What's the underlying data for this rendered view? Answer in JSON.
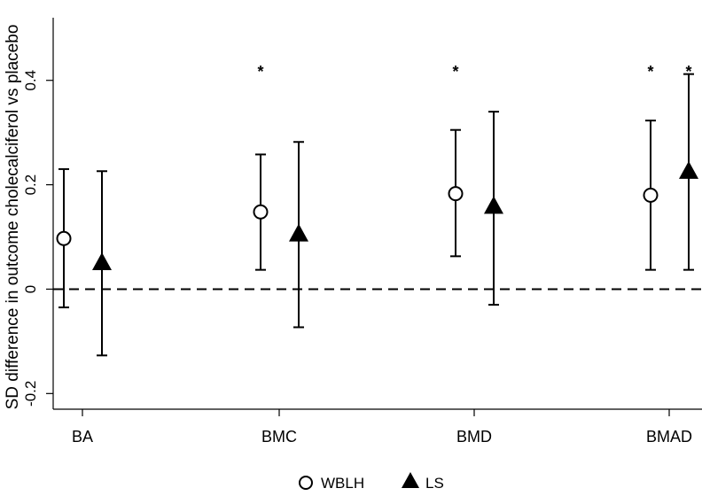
{
  "chart_data": {
    "type": "scatter",
    "title": "",
    "ylabel": "SD difference in outcome cholecalciferol vs placebo",
    "xlabel": "",
    "categories": [
      "BA",
      "BMC",
      "BMD",
      "BMAD"
    ],
    "ylim": [
      -0.23,
      0.52
    ],
    "yticks": [
      -0.2,
      0,
      0.2,
      0.4
    ],
    "ytick_labels": [
      "-0.2",
      "0",
      "0.2",
      "0.4"
    ],
    "reference_line": {
      "y": 0,
      "style": "dashed"
    },
    "significance_marker": "*",
    "series": [
      {
        "name": "WBLH",
        "marker": "open-circle",
        "values": [
          0.097,
          0.148,
          0.183,
          0.18
        ],
        "ci_low": [
          -0.035,
          0.037,
          0.063,
          0.037
        ],
        "ci_high": [
          0.23,
          0.258,
          0.305,
          0.323
        ],
        "significant": [
          false,
          true,
          true,
          true
        ]
      },
      {
        "name": "LS",
        "marker": "filled-triangle",
        "values": [
          0.05,
          0.105,
          0.158,
          0.225
        ],
        "ci_low": [
          -0.127,
          -0.073,
          -0.03,
          0.037
        ],
        "ci_high": [
          0.226,
          0.282,
          0.34,
          0.412
        ],
        "significant": [
          false,
          false,
          false,
          true
        ]
      }
    ],
    "grid": false,
    "legend": {
      "position": "bottom-center",
      "entries": [
        "WBLH",
        "LS"
      ]
    }
  }
}
